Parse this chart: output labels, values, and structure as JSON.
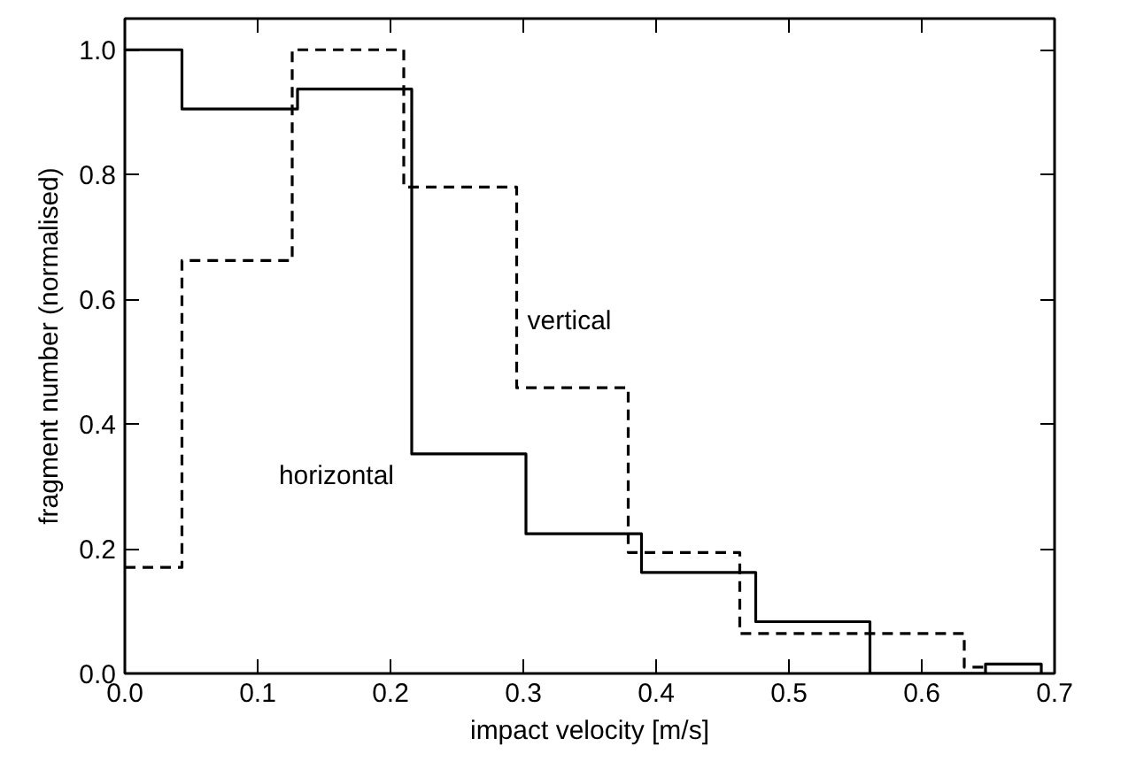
{
  "chart_data": {
    "type": "step",
    "xlabel": "impact velocity [m/s]",
    "ylabel": "fragment number (normalised)",
    "xlim": [
      0,
      0.7
    ],
    "ylim": [
      0,
      1.05
    ],
    "xticks": [
      {
        "value": 0,
        "label": "0.0"
      },
      0.1,
      0.2,
      0.3,
      0.4,
      0.5,
      0.6,
      0.7
    ],
    "yticks": [
      {
        "value": 0,
        "label": "0.0"
      },
      0.2,
      0.4,
      0.6,
      0.8,
      {
        "value": 1,
        "label": "1.0"
      }
    ],
    "grid": false,
    "series": [
      {
        "color": "#000000",
        "line_style": "solid",
        "x": [
          0,
          0.043,
          0.13,
          0.216,
          0.302,
          0.389,
          0.475,
          0.561,
          0.648,
          0.69
        ],
        "values": [
          1.0,
          0.905,
          0.937,
          0.352,
          0.224,
          0.162,
          0.083,
          0,
          0.015,
          0
        ]
      },
      {
        "color": "#000000",
        "line_style": "dashed",
        "x": [
          0,
          0.043,
          0.126,
          0.21,
          0.295,
          0.379,
          0.463,
          0.632,
          0.648
        ],
        "values": [
          0.17,
          0.662,
          1.0,
          0.78,
          0.458,
          0.194,
          0.064,
          0.01,
          0
        ]
      }
    ],
    "annotations": [
      {
        "text": "vertical",
        "x": 0.295,
        "y": 0.6
      },
      {
        "text": "horizontal",
        "x": 0.216,
        "y": 0.352
      }
    ]
  }
}
